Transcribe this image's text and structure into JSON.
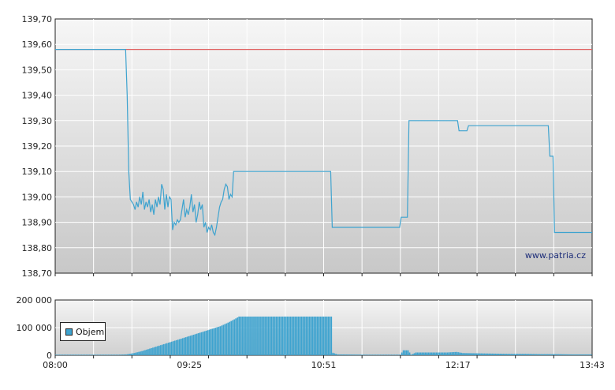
{
  "chart_data": [
    {
      "type": "line",
      "y_ticks": [
        "138,70",
        "138,80",
        "138,90",
        "139,00",
        "139,10",
        "139,20",
        "139,30",
        "139,40",
        "139,50",
        "139,60",
        "139,70"
      ],
      "ylim": [
        138.7,
        139.7
      ],
      "xlim_minutes": [
        480,
        823
      ],
      "watermark": "www.patria.cz",
      "reference_line": {
        "y": 139.58,
        "color": "#e06060"
      },
      "series": [
        {
          "color": "#3ea3cf",
          "points": [
            [
              480,
              139.58
            ],
            [
              525,
              139.58
            ],
            [
              526,
              139.4
            ],
            [
              527,
              139.1
            ],
            [
              528,
              138.99
            ],
            [
              530,
              138.97
            ],
            [
              531,
              138.95
            ],
            [
              532,
              138.98
            ],
            [
              533,
              138.96
            ],
            [
              534,
              139.0
            ],
            [
              535,
              138.97
            ],
            [
              536,
              139.02
            ],
            [
              537,
              138.95
            ],
            [
              538,
              138.98
            ],
            [
              539,
              138.96
            ],
            [
              540,
              138.99
            ],
            [
              541,
              138.94
            ],
            [
              542,
              138.97
            ],
            [
              543,
              138.93
            ],
            [
              544,
              138.99
            ],
            [
              545,
              138.96
            ],
            [
              546,
              139.0
            ],
            [
              547,
              138.97
            ],
            [
              548,
              139.05
            ],
            [
              549,
              139.03
            ],
            [
              550,
              138.95
            ],
            [
              551,
              139.01
            ],
            [
              552,
              138.96
            ],
            [
              553,
              139.0
            ],
            [
              554,
              138.99
            ],
            [
              555,
              138.87
            ],
            [
              556,
              138.9
            ],
            [
              557,
              138.89
            ],
            [
              558,
              138.91
            ],
            [
              559,
              138.9
            ],
            [
              560,
              138.91
            ],
            [
              561,
              138.95
            ],
            [
              562,
              138.99
            ],
            [
              563,
              138.92
            ],
            [
              564,
              138.95
            ],
            [
              565,
              138.93
            ],
            [
              566,
              138.96
            ],
            [
              567,
              139.01
            ],
            [
              568,
              138.94
            ],
            [
              569,
              138.97
            ],
            [
              570,
              138.9
            ],
            [
              571,
              138.93
            ],
            [
              572,
              138.98
            ],
            [
              573,
              138.95
            ],
            [
              574,
              138.97
            ],
            [
              575,
              138.88
            ],
            [
              576,
              138.9
            ],
            [
              577,
              138.86
            ],
            [
              578,
              138.88
            ],
            [
              579,
              138.87
            ],
            [
              580,
              138.89
            ],
            [
              581,
              138.86
            ],
            [
              582,
              138.85
            ],
            [
              583,
              138.88
            ],
            [
              584,
              138.92
            ],
            [
              585,
              138.96
            ],
            [
              586,
              138.98
            ],
            [
              587,
              138.99
            ],
            [
              588,
              139.03
            ],
            [
              589,
              139.05
            ],
            [
              590,
              139.04
            ],
            [
              591,
              138.99
            ],
            [
              592,
              139.01
            ],
            [
              593,
              139.0
            ],
            [
              594,
              139.1
            ],
            [
              656,
              139.1
            ],
            [
              657,
              138.88
            ],
            [
              700,
              138.88
            ],
            [
              701,
              138.92
            ],
            [
              705,
              138.92
            ],
            [
              706,
              139.3
            ],
            [
              737,
              139.3
            ],
            [
              738,
              139.26
            ],
            [
              743,
              139.26
            ],
            [
              744,
              139.28
            ],
            [
              795,
              139.28
            ],
            [
              796,
              139.16
            ],
            [
              798,
              139.16
            ],
            [
              799,
              138.86
            ],
            [
              823,
              138.86
            ]
          ]
        }
      ]
    },
    {
      "type": "bar",
      "y_ticks": [
        "0",
        "100 000",
        "200 000"
      ],
      "ylim": [
        0,
        200000
      ],
      "x_ticks": [
        "08:00",
        "09:25",
        "10:51",
        "12:17",
        "13:43"
      ],
      "legend": [
        "Objem"
      ],
      "series": [
        {
          "name": "Objem",
          "color": "#3ea3cf",
          "points": [
            [
              480,
              2000
            ],
            [
              500,
              2000
            ],
            [
              520,
              2000
            ],
            [
              525,
              3000
            ],
            [
              530,
              8000
            ],
            [
              535,
              15000
            ],
            [
              540,
              24000
            ],
            [
              545,
              33000
            ],
            [
              550,
              42000
            ],
            [
              555,
              51000
            ],
            [
              560,
              60000
            ],
            [
              565,
              69000
            ],
            [
              570,
              78000
            ],
            [
              575,
              87000
            ],
            [
              580,
              96000
            ],
            [
              585,
              105000
            ],
            [
              590,
              118000
            ],
            [
              594,
              130000
            ],
            [
              597,
              140000
            ],
            [
              600,
              140000
            ],
            [
              610,
              140000
            ],
            [
              620,
              140000
            ],
            [
              630,
              140000
            ],
            [
              640,
              140000
            ],
            [
              650,
              140000
            ],
            [
              656,
              140000
            ],
            [
              657,
              9000
            ],
            [
              660,
              3000
            ],
            [
              680,
              2000
            ],
            [
              700,
              2000
            ],
            [
              702,
              18000
            ],
            [
              705,
              18000
            ],
            [
              707,
              2000
            ],
            [
              710,
              10000
            ],
            [
              720,
              10000
            ],
            [
              730,
              10000
            ],
            [
              736,
              12000
            ],
            [
              740,
              8000
            ],
            [
              750,
              7000
            ],
            [
              760,
              6000
            ],
            [
              770,
              5000
            ],
            [
              780,
              5000
            ],
            [
              790,
              4000
            ],
            [
              800,
              4000
            ],
            [
              810,
              3000
            ],
            [
              823,
              3000
            ]
          ]
        }
      ]
    }
  ]
}
